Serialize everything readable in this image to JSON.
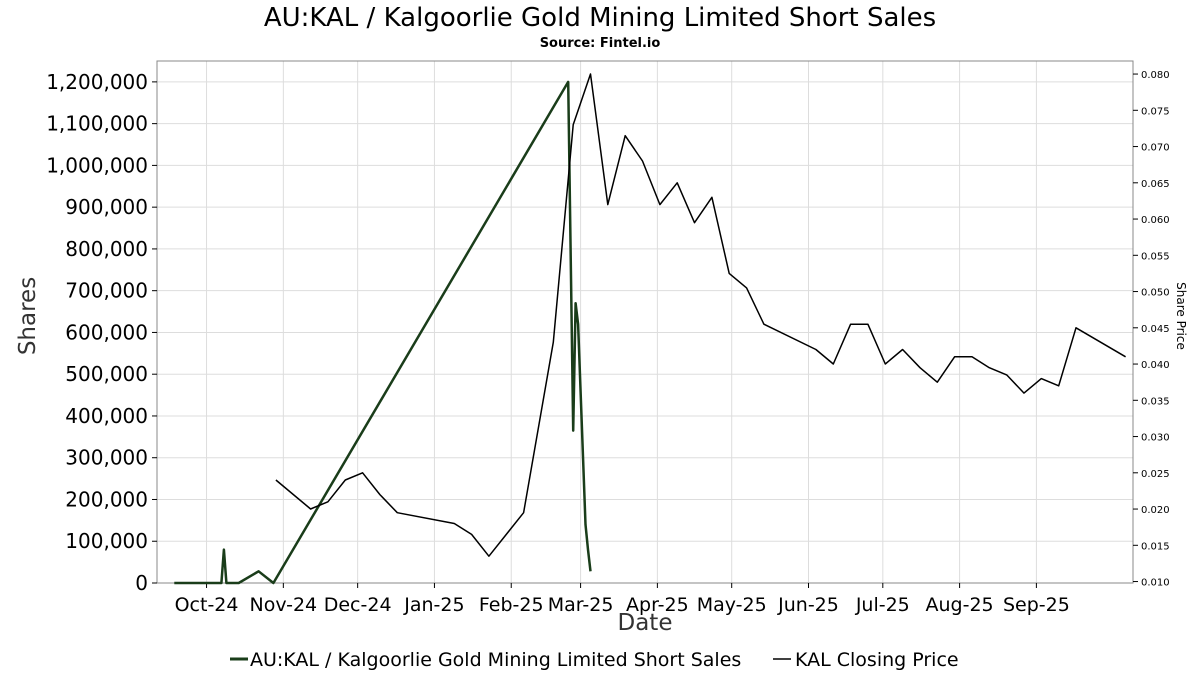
{
  "chart_data": {
    "type": "line",
    "title": "AU:KAL / Kalgoorlie Gold Mining Limited Short Sales",
    "subtitle": "Source: Fintel.io",
    "xlabel": "Date",
    "ylabel": "Shares",
    "ylabel_right": "Share Price",
    "x_ticks": [
      "Oct-24",
      "Nov-24",
      "Dec-24",
      "Jan-25",
      "Feb-25",
      "Mar-25",
      "Apr-25",
      "May-25",
      "Jun-25",
      "Jul-25",
      "Aug-25",
      "Sep-25"
    ],
    "x_tick_dates": [
      "2024-10-01",
      "2024-11-01",
      "2024-12-01",
      "2025-01-01",
      "2025-02-01",
      "2025-03-01",
      "2025-04-01",
      "2025-05-01",
      "2025-06-01",
      "2025-07-01",
      "2025-08-01",
      "2025-09-01"
    ],
    "xlim": [
      "2024-09-11",
      "2025-10-10"
    ],
    "ylim_left": [
      0,
      1250000
    ],
    "y_ticks_left": [
      0,
      100000,
      200000,
      300000,
      400000,
      500000,
      600000,
      700000,
      800000,
      900000,
      1000000,
      1100000,
      1200000
    ],
    "y_tick_labels_left": [
      "0",
      "100,000",
      "200,000",
      "300,000",
      "400,000",
      "500,000",
      "600,000",
      "700,000",
      "800,000",
      "900,000",
      "1,000,000",
      "1,100,000",
      "1,200,000"
    ],
    "ylim_right": [
      0.0098,
      0.0818
    ],
    "y_ticks_right": [
      0.01,
      0.015,
      0.02,
      0.025,
      0.03,
      0.035,
      0.04,
      0.045,
      0.05,
      0.055,
      0.06,
      0.065,
      0.07,
      0.075,
      0.08
    ],
    "y_tick_labels_right": [
      "0.010",
      "0.015",
      "0.020",
      "0.025",
      "0.030",
      "0.035",
      "0.040",
      "0.045",
      "0.050",
      "0.055",
      "0.060",
      "0.065",
      "0.070",
      "0.075",
      "0.080"
    ],
    "grid": true,
    "legend_position": "bottom-center",
    "series": [
      {
        "name": "AU:KAL / Kalgoorlie Gold Mining Limited Short Sales",
        "axis": "left",
        "color": "#1a3d1a",
        "points": [
          [
            "2024-09-18",
            0
          ],
          [
            "2024-09-20",
            0
          ],
          [
            "2024-09-23",
            0
          ],
          [
            "2024-09-25",
            0
          ],
          [
            "2024-09-27",
            0
          ],
          [
            "2024-09-30",
            0
          ],
          [
            "2024-10-03",
            0
          ],
          [
            "2024-10-07",
            0
          ],
          [
            "2024-10-08",
            80000
          ],
          [
            "2024-10-09",
            0
          ],
          [
            "2024-10-14",
            0
          ],
          [
            "2024-10-22",
            28000
          ],
          [
            "2024-10-28",
            0
          ],
          [
            "2025-02-24",
            1200000
          ],
          [
            "2025-02-26",
            365000
          ],
          [
            "2025-02-27",
            670000
          ],
          [
            "2025-02-28",
            620000
          ],
          [
            "2025-03-03",
            140000
          ],
          [
            "2025-03-04",
            80000
          ],
          [
            "2025-03-05",
            28000
          ]
        ]
      },
      {
        "name": "KAL Closing Price",
        "axis": "right",
        "color": "#000000",
        "points": [
          [
            "2024-10-29",
            0.024
          ],
          [
            "2024-11-12",
            0.02
          ],
          [
            "2024-11-19",
            0.021
          ],
          [
            "2024-11-26",
            0.024
          ],
          [
            "2024-12-03",
            0.025
          ],
          [
            "2024-12-10",
            0.022
          ],
          [
            "2024-12-17",
            0.0195
          ],
          [
            "2025-01-09",
            0.018
          ],
          [
            "2025-01-16",
            0.0165
          ],
          [
            "2025-01-23",
            0.0135
          ],
          [
            "2025-02-06",
            0.0195
          ],
          [
            "2025-02-18",
            0.043
          ],
          [
            "2025-02-26",
            0.073
          ],
          [
            "2025-03-05",
            0.08
          ],
          [
            "2025-03-12",
            0.062
          ],
          [
            "2025-03-19",
            0.0715
          ],
          [
            "2025-03-26",
            0.068
          ],
          [
            "2025-04-02",
            0.062
          ],
          [
            "2025-04-09",
            0.065
          ],
          [
            "2025-04-16",
            0.0595
          ],
          [
            "2025-04-23",
            0.063
          ],
          [
            "2025-04-30",
            0.0525
          ],
          [
            "2025-05-07",
            0.0505
          ],
          [
            "2025-05-14",
            0.0455
          ],
          [
            "2025-06-04",
            0.042
          ],
          [
            "2025-06-11",
            0.04
          ],
          [
            "2025-06-18",
            0.0455
          ],
          [
            "2025-06-25",
            0.0455
          ],
          [
            "2025-07-02",
            0.04
          ],
          [
            "2025-07-09",
            0.042
          ],
          [
            "2025-07-16",
            0.0395
          ],
          [
            "2025-07-23",
            0.0375
          ],
          [
            "2025-07-30",
            0.041
          ],
          [
            "2025-08-06",
            0.041
          ],
          [
            "2025-08-13",
            0.0395
          ],
          [
            "2025-08-20",
            0.0385
          ],
          [
            "2025-08-27",
            0.036
          ],
          [
            "2025-09-03",
            0.038
          ],
          [
            "2025-09-10",
            0.037
          ],
          [
            "2025-09-17",
            0.045
          ],
          [
            "2025-10-07",
            0.041
          ]
        ]
      }
    ]
  }
}
